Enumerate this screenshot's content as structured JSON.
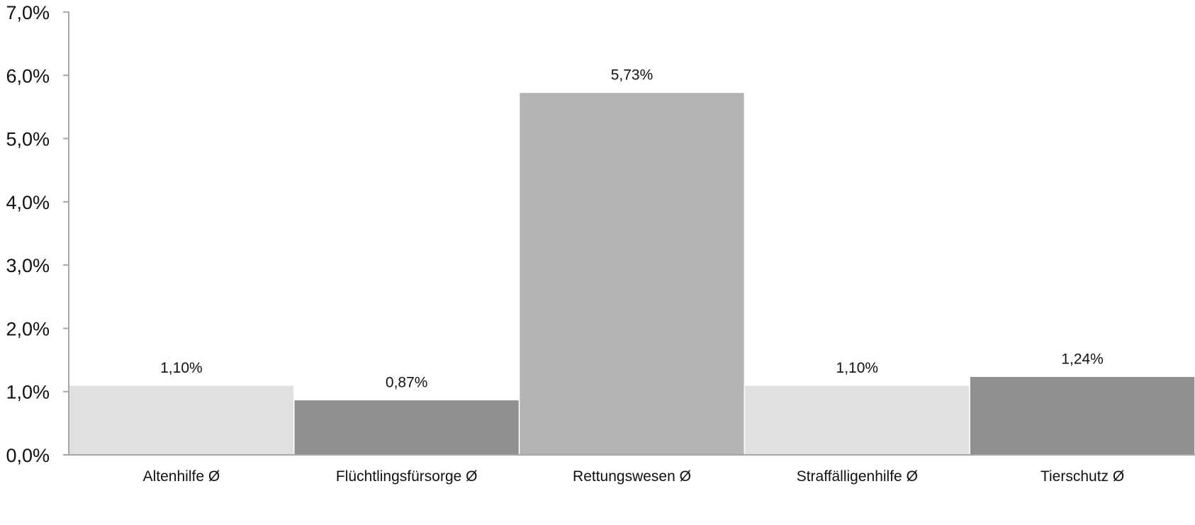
{
  "chart_data": {
    "type": "bar",
    "title": "",
    "xlabel": "",
    "ylabel": "",
    "categories": [
      "Altenhilfe Ø",
      "Flüchtlingsfürsorge Ø",
      "Rettungswesen Ø",
      "Straffälligenhilfe Ø",
      "Tierschutz Ø"
    ],
    "values": [
      1.1,
      0.87,
      5.73,
      1.1,
      1.24
    ],
    "value_labels": [
      "1,10%",
      "0,87%",
      "5,73%",
      "1,10%",
      "1,24%"
    ],
    "bar_colors": [
      "#e0e0e0",
      "#909090",
      "#b3b3b3",
      "#e0e0e0",
      "#909090"
    ],
    "ylim": [
      0,
      7
    ],
    "yticks": [
      0,
      1,
      2,
      3,
      4,
      5,
      6,
      7
    ],
    "ytick_labels": [
      "0,0%",
      "1,0%",
      "2,0%",
      "3,0%",
      "4,0%",
      "5,0%",
      "6,0%",
      "7,0%"
    ],
    "grid": false,
    "legend": "none"
  }
}
